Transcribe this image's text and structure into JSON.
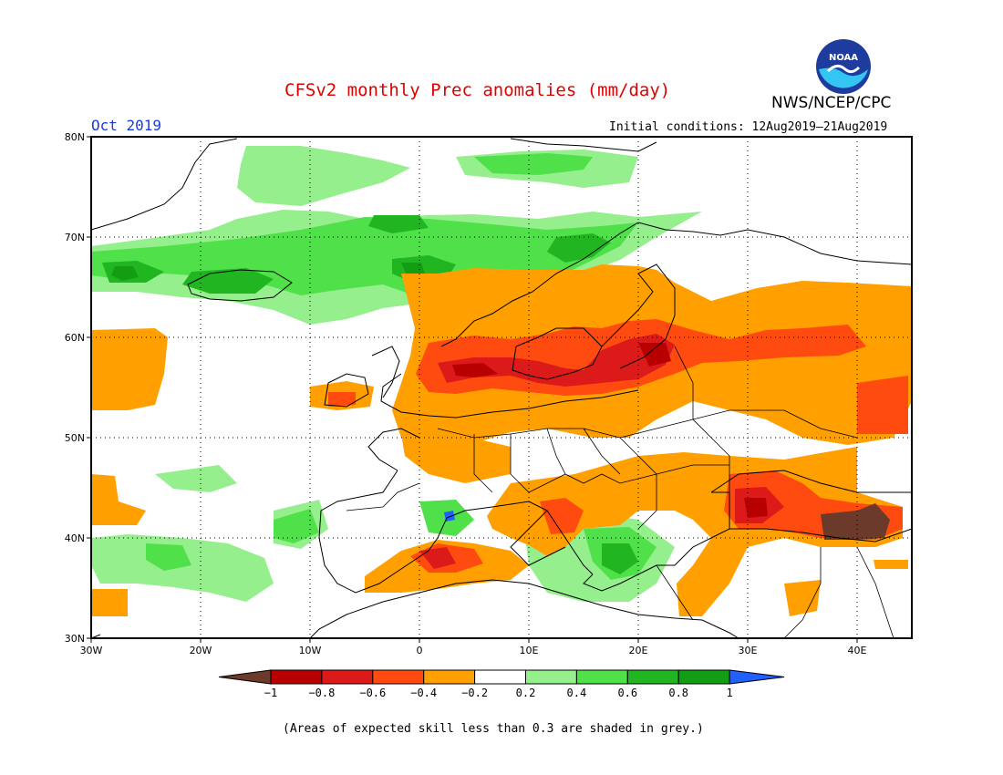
{
  "header": {
    "title": "CFSv2 monthly Prec anomalies (mm/day)",
    "agency": "NWS/NCEP/CPC",
    "month": "Oct 2019",
    "initial_conditions": "Initial conditions: 12Aug2019–21Aug2019",
    "logo_text": "NOAA"
  },
  "map": {
    "lon_range": [
      -30,
      45
    ],
    "lat_range": [
      30,
      80
    ],
    "lat_labels": [
      "80N",
      "70N",
      "60N",
      "50N",
      "40N",
      "30N"
    ],
    "lon_labels": [
      "30W",
      "20W",
      "10W",
      "0",
      "10E",
      "20E",
      "30E",
      "40E"
    ]
  },
  "legend": {
    "labels": [
      "−1",
      "−0.8",
      "−0.6",
      "−0.4",
      "−0.2",
      "0.2",
      "0.4",
      "0.6",
      "0.8",
      "1"
    ],
    "colors": {
      "below_-1": "#6b3a2a",
      "-1_-0.8": "#b80000",
      "-0.8_-0.6": "#dd1a1a",
      "-0.6_-0.4": "#ff4a10",
      "-0.4_-0.2": "#ff9f00",
      "-0.2_0.2": "#ffffff",
      "0.2_0.4": "#94ef8c",
      "0.4_0.6": "#4fe04a",
      "0.6_0.8": "#22b522",
      "0.8_1": "#129d12",
      "above_1": "#2060ff"
    }
  },
  "footnote": "(Areas of expected skill less than 0.3 are shaded in grey.)"
}
